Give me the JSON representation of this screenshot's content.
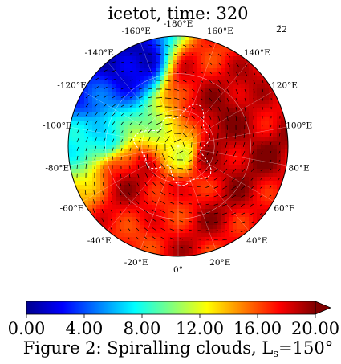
{
  "title": "icetot, time: 320",
  "corner_label": "2̄2",
  "caption": {
    "prefix": "Figure 2: Spiralling clouds, L",
    "subscript": "s",
    "suffix": "=150°"
  },
  "chart_data": {
    "type": "heatmap",
    "projection": "polar stereographic (north)",
    "title": "icetot, time: 320",
    "colormap": "jet",
    "vmin": 0.0,
    "vmax": 20.0,
    "colorbar": {
      "orientation": "horizontal",
      "extend": "max",
      "tick_values": [
        0,
        4,
        8,
        12,
        16,
        20
      ],
      "tick_labels": [
        "0.00",
        "4.00",
        "8.00",
        "12.00",
        "16.00",
        "20.00"
      ]
    },
    "longitude_labels": [
      {
        "lon": 180,
        "text": "-180°E"
      },
      {
        "lon": 160,
        "text": "160°E"
      },
      {
        "lon": 140,
        "text": "140°E"
      },
      {
        "lon": 120,
        "text": "120°E"
      },
      {
        "lon": 100,
        "text": "100°E"
      },
      {
        "lon": 80,
        "text": "80°E"
      },
      {
        "lon": 60,
        "text": "60°E"
      },
      {
        "lon": 40,
        "text": "40°E"
      },
      {
        "lon": 20,
        "text": "20°E"
      },
      {
        "lon": 0,
        "text": "0°"
      },
      {
        "lon": -20,
        "text": "-20°E"
      },
      {
        "lon": -40,
        "text": "-40°E"
      },
      {
        "lon": -60,
        "text": "-60°E"
      },
      {
        "lon": -80,
        "text": "-80°E"
      },
      {
        "lon": -100,
        "text": "-100°E"
      },
      {
        "lon": -120,
        "text": "-120°E"
      },
      {
        "lon": -140,
        "text": "-140°E"
      },
      {
        "lon": -160,
        "text": "-160°E"
      }
    ],
    "overlay": "wind vectors (spiral around pole)",
    "field_features": [
      {
        "lon": -150,
        "rel_r": 0.85,
        "value": 1.5
      },
      {
        "lon": -120,
        "rel_r": 0.9,
        "value": 4.0
      },
      {
        "lon": -100,
        "rel_r": 0.75,
        "value": 7.0
      },
      {
        "lon": 160,
        "rel_r": 0.55,
        "value": 18.5
      },
      {
        "lon": 100,
        "rel_r": 0.45,
        "value": 19.5
      },
      {
        "lon": 70,
        "rel_r": 0.35,
        "value": 19.0
      },
      {
        "lon": -60,
        "rel_r": 0.5,
        "value": 18.0
      },
      {
        "lon": -10,
        "rel_r": 0.55,
        "value": 17.5
      },
      {
        "lon": 40,
        "rel_r": 0.65,
        "value": 18.0
      },
      {
        "lon": 0,
        "rel_r": 0.0,
        "value": 12.0
      }
    ]
  }
}
